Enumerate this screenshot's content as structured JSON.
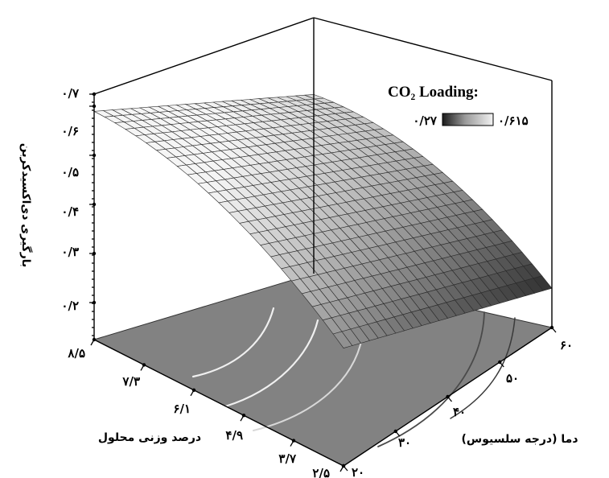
{
  "chart_data": {
    "type": "surface3d",
    "title": "",
    "zlabel": "بارگیری دی‌اکسیدکربن",
    "xlabel": "درصد وزنی محلول",
    "ylabel": "دما (درجه سلسیوس)",
    "z_ticks": [
      "۰/۲",
      "۰/۳",
      "۰/۴",
      "۰/۵",
      "۰/۶",
      "۰/۷"
    ],
    "x_ticks": [
      "۸/۵",
      "۷/۳",
      "۶/۱",
      "۴/۹",
      "۳/۷",
      "۲/۵"
    ],
    "y_ticks": [
      "۲۰",
      "۳۰",
      "۴۰",
      "۵۰",
      "۶۰"
    ],
    "zlim": [
      0.2,
      0.7
    ],
    "x_range": [
      2.5,
      8.5
    ],
    "y_range": [
      20,
      60
    ],
    "legend": {
      "title": "CO₂ Loading:",
      "min_label": "۰/۲۷",
      "max_label": "۰/۶۱۵",
      "min": 0.27,
      "max": 0.615
    },
    "corner_values": [
      {
        "x": 8.5,
        "y": 20,
        "z": 0.665
      },
      {
        "x": 2.5,
        "y": 20,
        "z": 0.44
      },
      {
        "x": 8.5,
        "y": 60,
        "z": 0.565
      },
      {
        "x": 2.5,
        "y": 60,
        "z": 0.28
      }
    ],
    "grid_on": false
  }
}
